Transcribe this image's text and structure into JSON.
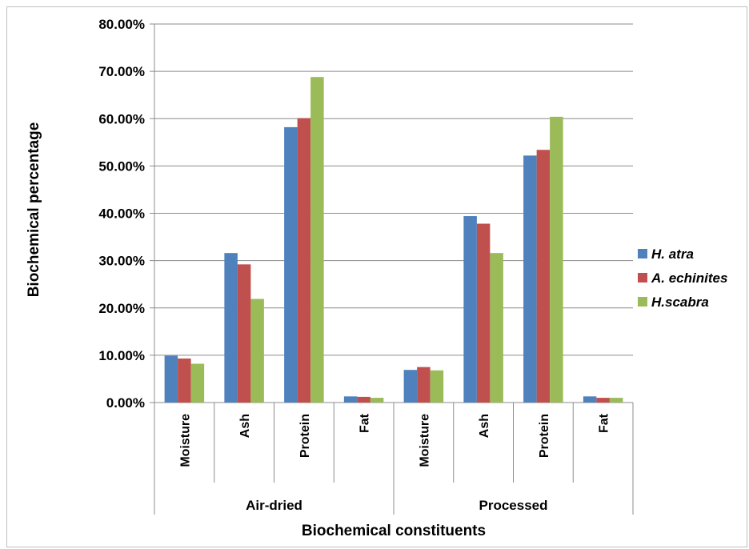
{
  "chart_data": {
    "type": "bar",
    "title": "",
    "xlabel": "Biochemical constituents",
    "ylabel": "Biochemical percentage",
    "ylim": [
      0,
      0.8
    ],
    "y_ticks": [
      0,
      0.1,
      0.2,
      0.3,
      0.4,
      0.5,
      0.6,
      0.7,
      0.8
    ],
    "y_tick_labels": [
      "0.00%",
      "10.00%",
      "20.00%",
      "30.00%",
      "40.00%",
      "50.00%",
      "60.00%",
      "70.00%",
      "80.00%"
    ],
    "grid": true,
    "legend_position": "right",
    "groups": [
      {
        "label": "Air-dried",
        "categories": [
          "Moisture",
          "Ash",
          "Protein",
          "Fat"
        ]
      },
      {
        "label": "Processed",
        "categories": [
          "Moisture",
          "Ash",
          "Protein",
          "Fat"
        ]
      }
    ],
    "categories": [
      "Moisture",
      "Ash",
      "Protein",
      "Fat",
      "Moisture",
      "Ash",
      "Protein",
      "Fat"
    ],
    "series": [
      {
        "name": "H. atra",
        "color": "#4f81bd",
        "values": [
          0.099,
          0.316,
          0.582,
          0.013,
          0.069,
          0.394,
          0.522,
          0.013
        ]
      },
      {
        "name": "A. echinites",
        "color": "#c0504d",
        "values": [
          0.093,
          0.292,
          0.601,
          0.012,
          0.075,
          0.378,
          0.534,
          0.01
        ]
      },
      {
        "name": "H.scabra",
        "color": "#9bbb59",
        "values": [
          0.082,
          0.219,
          0.688,
          0.01,
          0.068,
          0.316,
          0.604,
          0.01
        ]
      }
    ]
  }
}
